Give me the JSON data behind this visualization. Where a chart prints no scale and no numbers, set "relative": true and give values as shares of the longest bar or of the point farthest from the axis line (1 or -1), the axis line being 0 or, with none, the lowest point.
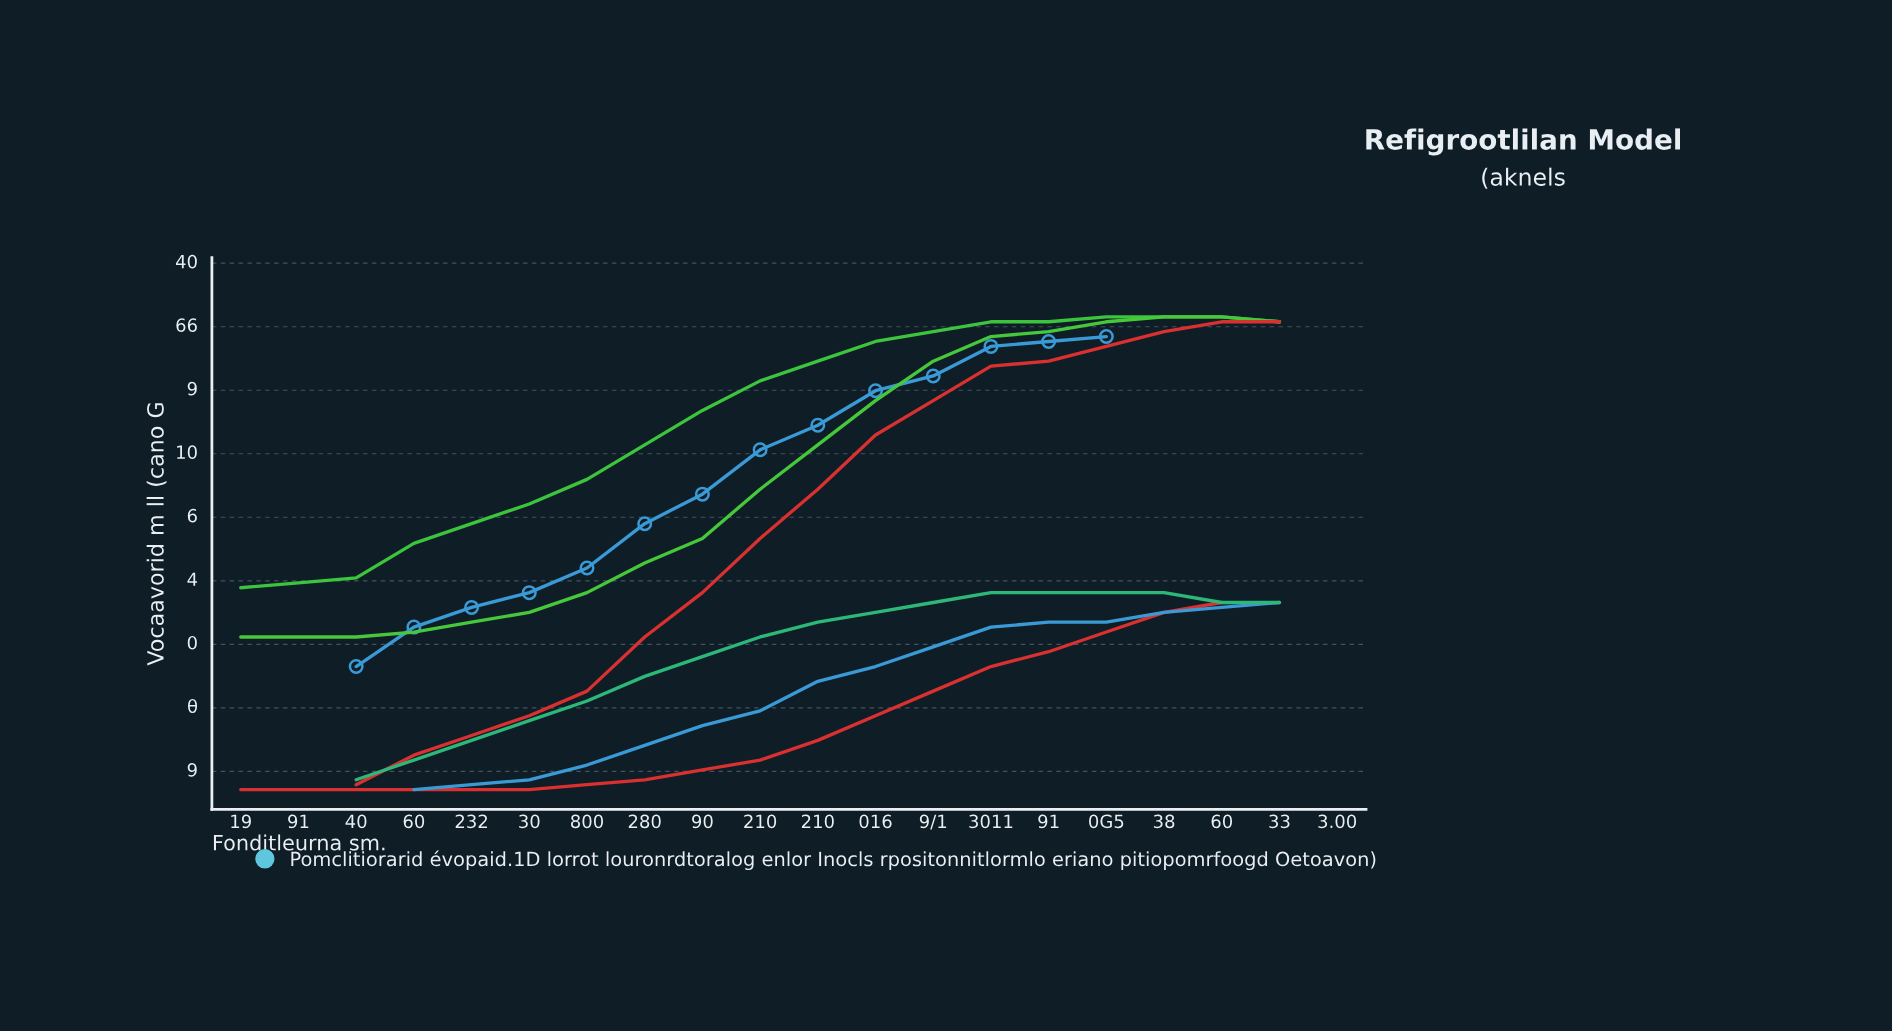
{
  "chart_data": {
    "type": "line",
    "title": "Refigrootlilan Model",
    "subtitle": "(aknels",
    "xlabel": "Fonditleurna sm.",
    "ylabel": "Vocaavorid m ll (cano G",
    "annotations": [
      "Pomclitiorarid évopaid.1D lorrot louronrdtoralog enlor Inocls rpositonnitlormlo eriano pitiopomrfoogd Oetoavon)",
      "9",
      "θ",
      "0",
      "4",
      "6",
      "10",
      "9",
      "66",
      "40"
    ],
    "categories": [
      "19",
      "91",
      "40",
      "60",
      "232",
      "30",
      "800",
      "280",
      "90",
      "210",
      "210",
      "016",
      "9/1",
      "3011",
      "91",
      "0G5",
      "38",
      "60",
      "33",
      "3.00"
    ],
    "relative": true,
    "grid": "y",
    "line_style": "solid",
    "marker": "none",
    "series": [
      {
        "color": "#3cc43c",
        "values": [
          0.45,
          0.46,
          0.47,
          0.54,
          0.58,
          0.62,
          0.67,
          0.74,
          0.81,
          0.87,
          0.91,
          0.95,
          0.97,
          0.99,
          0.99,
          1.0,
          1.0,
          1.0,
          0.99,
          null
        ]
      },
      {
        "color": "#3a9ad6",
        "marker": "circle",
        "values": [
          null,
          null,
          0.29,
          0.37,
          0.41,
          0.44,
          0.49,
          0.58,
          0.64,
          0.73,
          0.78,
          0.85,
          0.88,
          0.94,
          0.95,
          0.96,
          null,
          null,
          null,
          null
        ]
      },
      {
        "color": "#46c83a",
        "values": [
          0.35,
          0.35,
          0.35,
          0.36,
          0.38,
          0.4,
          0.44,
          0.5,
          0.55,
          0.65,
          0.74,
          0.83,
          0.91,
          0.96,
          0.97,
          0.99,
          1.0,
          1.0,
          0.99,
          null
        ]
      },
      {
        "color": "#d93030",
        "values": [
          null,
          null,
          0.05,
          0.11,
          0.15,
          0.19,
          0.24,
          0.35,
          0.44,
          0.55,
          0.65,
          0.76,
          0.83,
          0.9,
          0.91,
          0.94,
          0.97,
          0.99,
          0.99,
          null
        ]
      },
      {
        "color": "#d93030",
        "values": [
          0.04,
          0.04,
          0.04,
          0.04,
          0.04,
          0.04,
          0.05,
          0.06,
          0.08,
          0.1,
          0.14,
          0.19,
          0.24,
          0.29,
          0.32,
          0.36,
          0.4,
          0.42,
          null,
          null
        ]
      },
      {
        "color": "#3a9ad6",
        "values": [
          null,
          null,
          null,
          0.04,
          0.05,
          0.06,
          0.09,
          0.13,
          0.17,
          0.2,
          0.26,
          0.29,
          0.33,
          0.37,
          0.38,
          0.38,
          0.4,
          0.41,
          0.42,
          null
        ]
      },
      {
        "color": "#2db87a",
        "values": [
          null,
          null,
          0.06,
          0.1,
          0.14,
          0.18,
          0.22,
          0.27,
          0.31,
          0.35,
          0.38,
          0.4,
          0.42,
          0.44,
          0.44,
          0.44,
          0.44,
          0.42,
          0.42,
          null
        ]
      }
    ]
  }
}
